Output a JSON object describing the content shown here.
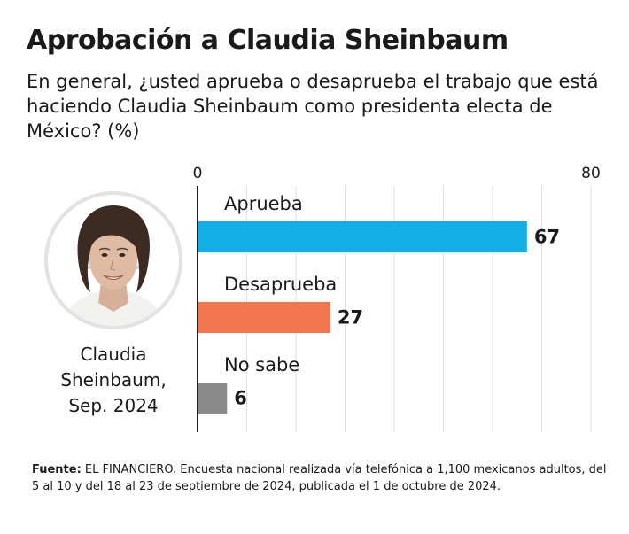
{
  "header": {
    "title": "Aprobación a Claudia Sheinbaum",
    "subtitle": "En general, ¿usted aprueba o desaprueba el trabajo que está haciendo Claudia Sheinbaum como presidenta electa de México? (%)"
  },
  "person": {
    "name_line1": "Claudia",
    "name_line2": "Sheinbaum,",
    "date": "Sep. 2024"
  },
  "chart_data": {
    "type": "bar",
    "orientation": "horizontal",
    "title": "Aprobación a Claudia Sheinbaum",
    "categories": [
      "Aprueba",
      "Desaprueba",
      "No sabe"
    ],
    "values": [
      67,
      27,
      6
    ],
    "colors": [
      "#13aee7",
      "#f07650",
      "#8a8a8a"
    ],
    "xlim": [
      0,
      80
    ],
    "tick_labels": [
      "0",
      "80"
    ],
    "grid": true,
    "data_labels": true
  },
  "footer": {
    "source_label": "Fuente:",
    "source_text": " EL FINANCIERO. Encuesta nacional realizada vía telefónica a 1,100 mexicanos adultos, del 5 al 10 y del 18 al 23 de septiembre de 2024, publicada el 1 de octubre de 2024."
  }
}
